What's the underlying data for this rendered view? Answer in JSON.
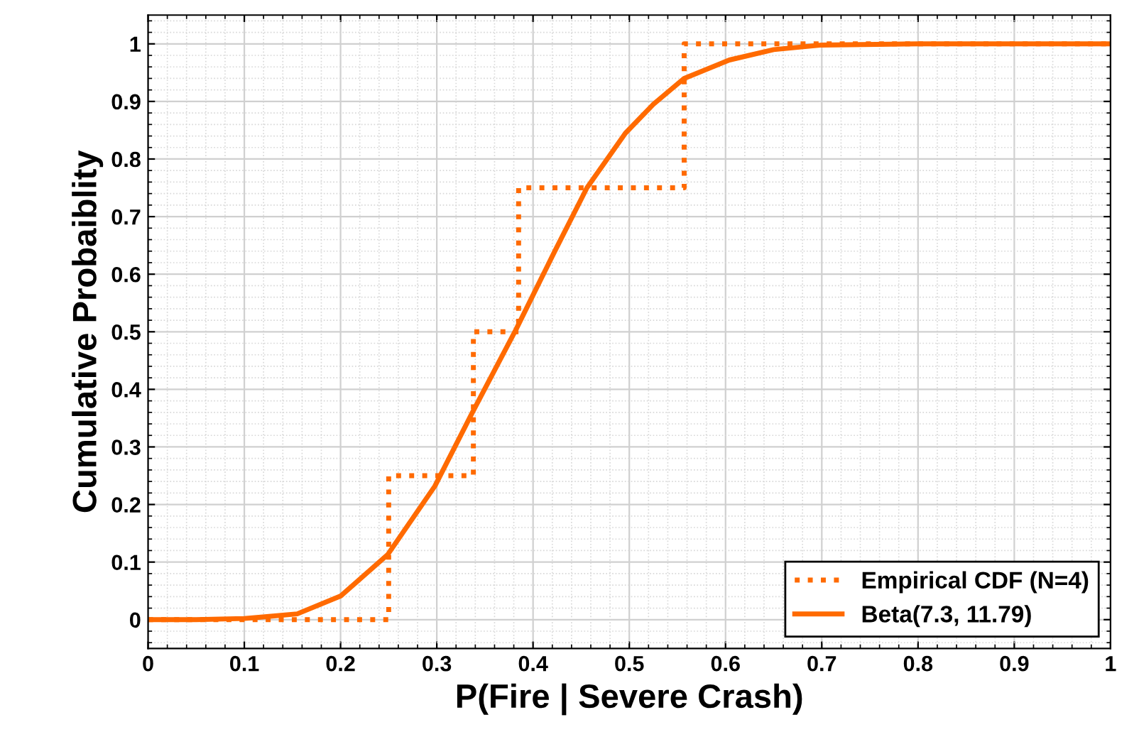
{
  "chart_data": {
    "type": "line",
    "xlabel": "P(Fire | Severe Crash)",
    "ylabel": "Cumulative Probaiblity",
    "xlim": [
      0,
      1
    ],
    "ylim": [
      -0.05,
      1.05
    ],
    "xticks": [
      0,
      0.1,
      0.2,
      0.3,
      0.4,
      0.5,
      0.6,
      0.7,
      0.8,
      0.9,
      1
    ],
    "yticks": [
      0,
      0.1,
      0.2,
      0.3,
      0.4,
      0.5,
      0.6,
      0.7,
      0.8,
      0.9,
      1
    ],
    "grid": true,
    "legend": "bottom right",
    "series": [
      {
        "name": "Empirical CDF (N=4)",
        "type": "step",
        "line_style": "dotted",
        "color": "#ff6a00",
        "x": [
          0,
          0.25,
          0.338,
          0.385,
          0.557,
          1
        ],
        "values": [
          0,
          0.25,
          0.5,
          0.75,
          1,
          1
        ]
      },
      {
        "name": "Beta(7.3, 11.79)",
        "line_style": "solid",
        "color": "#ff6a00",
        "x": [
          0,
          0.05,
          0.1,
          0.115,
          0.155,
          0.2,
          0.249,
          0.298,
          0.337,
          0.382,
          0.422,
          0.456,
          0.496,
          0.525,
          0.557,
          0.604,
          0.65,
          0.7,
          0.8,
          0.9,
          1
        ],
        "values": [
          0,
          0,
          0.002,
          0.004,
          0.01,
          0.041,
          0.113,
          0.232,
          0.36,
          0.503,
          0.638,
          0.75,
          0.845,
          0.895,
          0.94,
          0.972,
          0.99,
          0.998,
          1,
          1,
          1
        ]
      }
    ]
  }
}
